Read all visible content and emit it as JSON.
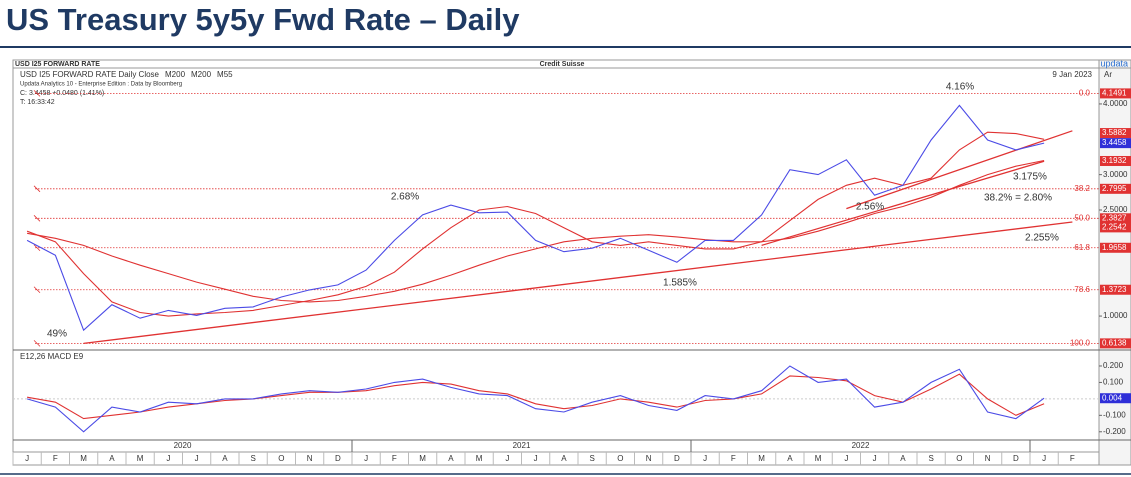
{
  "page_title": "US Treasury 5y5y Fwd Rate – Daily",
  "header": {
    "instrument": "USD I25 FORWARD RATE",
    "source": "Credit Suisse",
    "brand": "updata",
    "legend_extra": "M200",
    "software": "Updata Analytics 10 - Enterprise Edition : Data by Bloomberg",
    "close": "C: 3.4458 +0.0480 (1.41%)",
    "time": "T: 16:33:42",
    "date": "9 Jan 2023",
    "axis_tag": "Ar"
  },
  "x_month_labels": [
    "J",
    "F",
    "M",
    "A",
    "M",
    "J",
    "J",
    "A",
    "S",
    "O",
    "N",
    "D",
    "J",
    "F",
    "M",
    "A",
    "M",
    "J",
    "J",
    "A",
    "S",
    "O",
    "N",
    "D",
    "J",
    "F",
    "M",
    "A",
    "M",
    "J",
    "J",
    "A",
    "S",
    "O",
    "N",
    "D",
    "J",
    "F"
  ],
  "x_year_labels": [
    "2020",
    "2021",
    "2022"
  ],
  "chart_data": [
    {
      "type": "line",
      "x": [
        "2020-01",
        "2020-02",
        "2020-03",
        "2020-04",
        "2020-05",
        "2020-06",
        "2020-07",
        "2020-08",
        "2020-09",
        "2020-10",
        "2020-11",
        "2020-12",
        "2021-01",
        "2021-02",
        "2021-03",
        "2021-04",
        "2021-05",
        "2021-06",
        "2021-07",
        "2021-08",
        "2021-09",
        "2021-10",
        "2021-11",
        "2021-12",
        "2022-01",
        "2022-02",
        "2022-03",
        "2022-04",
        "2022-05",
        "2022-06",
        "2022-07",
        "2022-08",
        "2022-09",
        "2022-10",
        "2022-11",
        "2022-12",
        "2023-01"
      ],
      "series": [
        {
          "name": "USD I25 FORWARD RATE Daily Close",
          "color": "#4b4be6",
          "values": [
            2.07,
            1.86,
            0.8,
            1.16,
            0.97,
            1.08,
            1.01,
            1.11,
            1.13,
            1.27,
            1.37,
            1.44,
            1.65,
            2.07,
            2.43,
            2.57,
            2.46,
            2.47,
            2.07,
            1.91,
            1.96,
            2.1,
            1.93,
            1.76,
            2.07,
            2.07,
            2.43,
            3.07,
            3.0,
            3.21,
            2.71,
            2.85,
            3.49,
            3.98,
            3.49,
            3.35,
            3.4458
          ]
        },
        {
          "name": "M200",
          "color": "#e03232",
          "values": [
            2.17,
            2.1,
            2.0,
            1.85,
            1.72,
            1.6,
            1.48,
            1.38,
            1.28,
            1.22,
            1.2,
            1.22,
            1.28,
            1.35,
            1.45,
            1.58,
            1.72,
            1.85,
            1.95,
            2.05,
            2.1,
            2.13,
            2.15,
            2.12,
            2.08,
            2.05,
            2.05,
            2.1,
            2.2,
            2.32,
            2.45,
            2.55,
            2.68,
            2.85,
            3.0,
            3.12,
            3.2
          ]
        },
        {
          "name": "M55",
          "color": "#e03232",
          "values": [
            2.2,
            2.05,
            1.6,
            1.2,
            1.05,
            1.0,
            1.03,
            1.05,
            1.08,
            1.15,
            1.22,
            1.3,
            1.42,
            1.62,
            1.95,
            2.25,
            2.5,
            2.55,
            2.45,
            2.25,
            2.05,
            2.0,
            2.05,
            2.0,
            1.95,
            1.95,
            2.05,
            2.35,
            2.65,
            2.85,
            2.95,
            2.85,
            2.95,
            3.35,
            3.6,
            3.58,
            3.5
          ]
        }
      ],
      "ylim": [
        0.52,
        4.48
      ],
      "yticks": [
        {
          "value": 4,
          "label": "4.0000"
        },
        {
          "value": 3,
          "label": "3.0000"
        },
        {
          "value": 2.5,
          "label": "2.5000"
        },
        {
          "value": 1,
          "label": "1.0000"
        }
      ],
      "grid": false,
      "fib_levels": [
        {
          "label": "0.0",
          "value": 4.1491
        },
        {
          "label": "38.2",
          "value": 2.7995
        },
        {
          "label": "50.0",
          "value": 2.3827
        },
        {
          "label": "61.8",
          "value": 1.9658
        },
        {
          "label": "78.6",
          "value": 1.3723
        },
        {
          "label": "100.0",
          "value": 0.6138
        }
      ],
      "fib_color": "#e03232",
      "axis_markers": [
        {
          "value": 3.5882,
          "color": "#e03232"
        },
        {
          "value": 3.4458,
          "color": "#2f2fd8"
        },
        {
          "value": 3.1932,
          "color": "#e03232"
        },
        {
          "value": 2.2542,
          "color": "#e03232"
        }
      ],
      "trendlines": [
        {
          "start": {
            "x": "2020-03",
            "value": 0.6138
          },
          "end": {
            "x": "2023-02",
            "value": 2.33
          },
          "color": "#e03232"
        },
        {
          "start": {
            "x": "2022-06",
            "value": 2.52
          },
          "end": {
            "x": "2023-02",
            "value": 3.62
          },
          "color": "#e03232"
        },
        {
          "start": {
            "x": "2022-03",
            "value": 2.0
          },
          "end": {
            "x": "2023-01",
            "value": 3.19
          },
          "color": "#e03232"
        }
      ],
      "annotations": [
        "4.16%",
        "2.68%",
        "2.56%",
        "1.585%",
        "3.175%",
        "38.2% = 2.80%",
        "2.255%",
        "49%"
      ]
    },
    {
      "type": "line",
      "title": "E12,26 MACD  E9",
      "series": [
        {
          "name": "MACD",
          "color": "#4b4be6",
          "values": [
            0.0,
            -0.05,
            -0.2,
            -0.05,
            -0.08,
            -0.02,
            -0.03,
            0.0,
            0.0,
            0.03,
            0.05,
            0.04,
            0.06,
            0.1,
            0.12,
            0.07,
            0.03,
            0.02,
            -0.06,
            -0.08,
            -0.02,
            0.02,
            -0.04,
            -0.07,
            0.02,
            0.0,
            0.05,
            0.2,
            0.1,
            0.12,
            -0.05,
            -0.02,
            0.1,
            0.18,
            -0.08,
            -0.12,
            0.004
          ]
        },
        {
          "name": "Signal",
          "color": "#e03232",
          "values": [
            0.01,
            -0.02,
            -0.12,
            -0.1,
            -0.08,
            -0.05,
            -0.03,
            -0.01,
            0.0,
            0.02,
            0.04,
            0.04,
            0.05,
            0.08,
            0.1,
            0.09,
            0.05,
            0.03,
            -0.03,
            -0.06,
            -0.04,
            0.0,
            -0.02,
            -0.05,
            -0.01,
            0.0,
            0.03,
            0.14,
            0.13,
            0.11,
            0.02,
            -0.02,
            0.06,
            0.15,
            0.0,
            -0.1,
            -0.03
          ]
        }
      ],
      "ylim": [
        -0.25,
        0.285
      ],
      "yticks": [
        {
          "value": 0.2,
          "label": "0.200"
        },
        {
          "value": 0.1,
          "label": "0.100"
        },
        {
          "value": -0.1,
          "label": "-0.100"
        },
        {
          "value": -0.2,
          "label": "-0.200"
        }
      ],
      "current": {
        "value": 0.004,
        "color": "#2f2fd8"
      }
    }
  ]
}
